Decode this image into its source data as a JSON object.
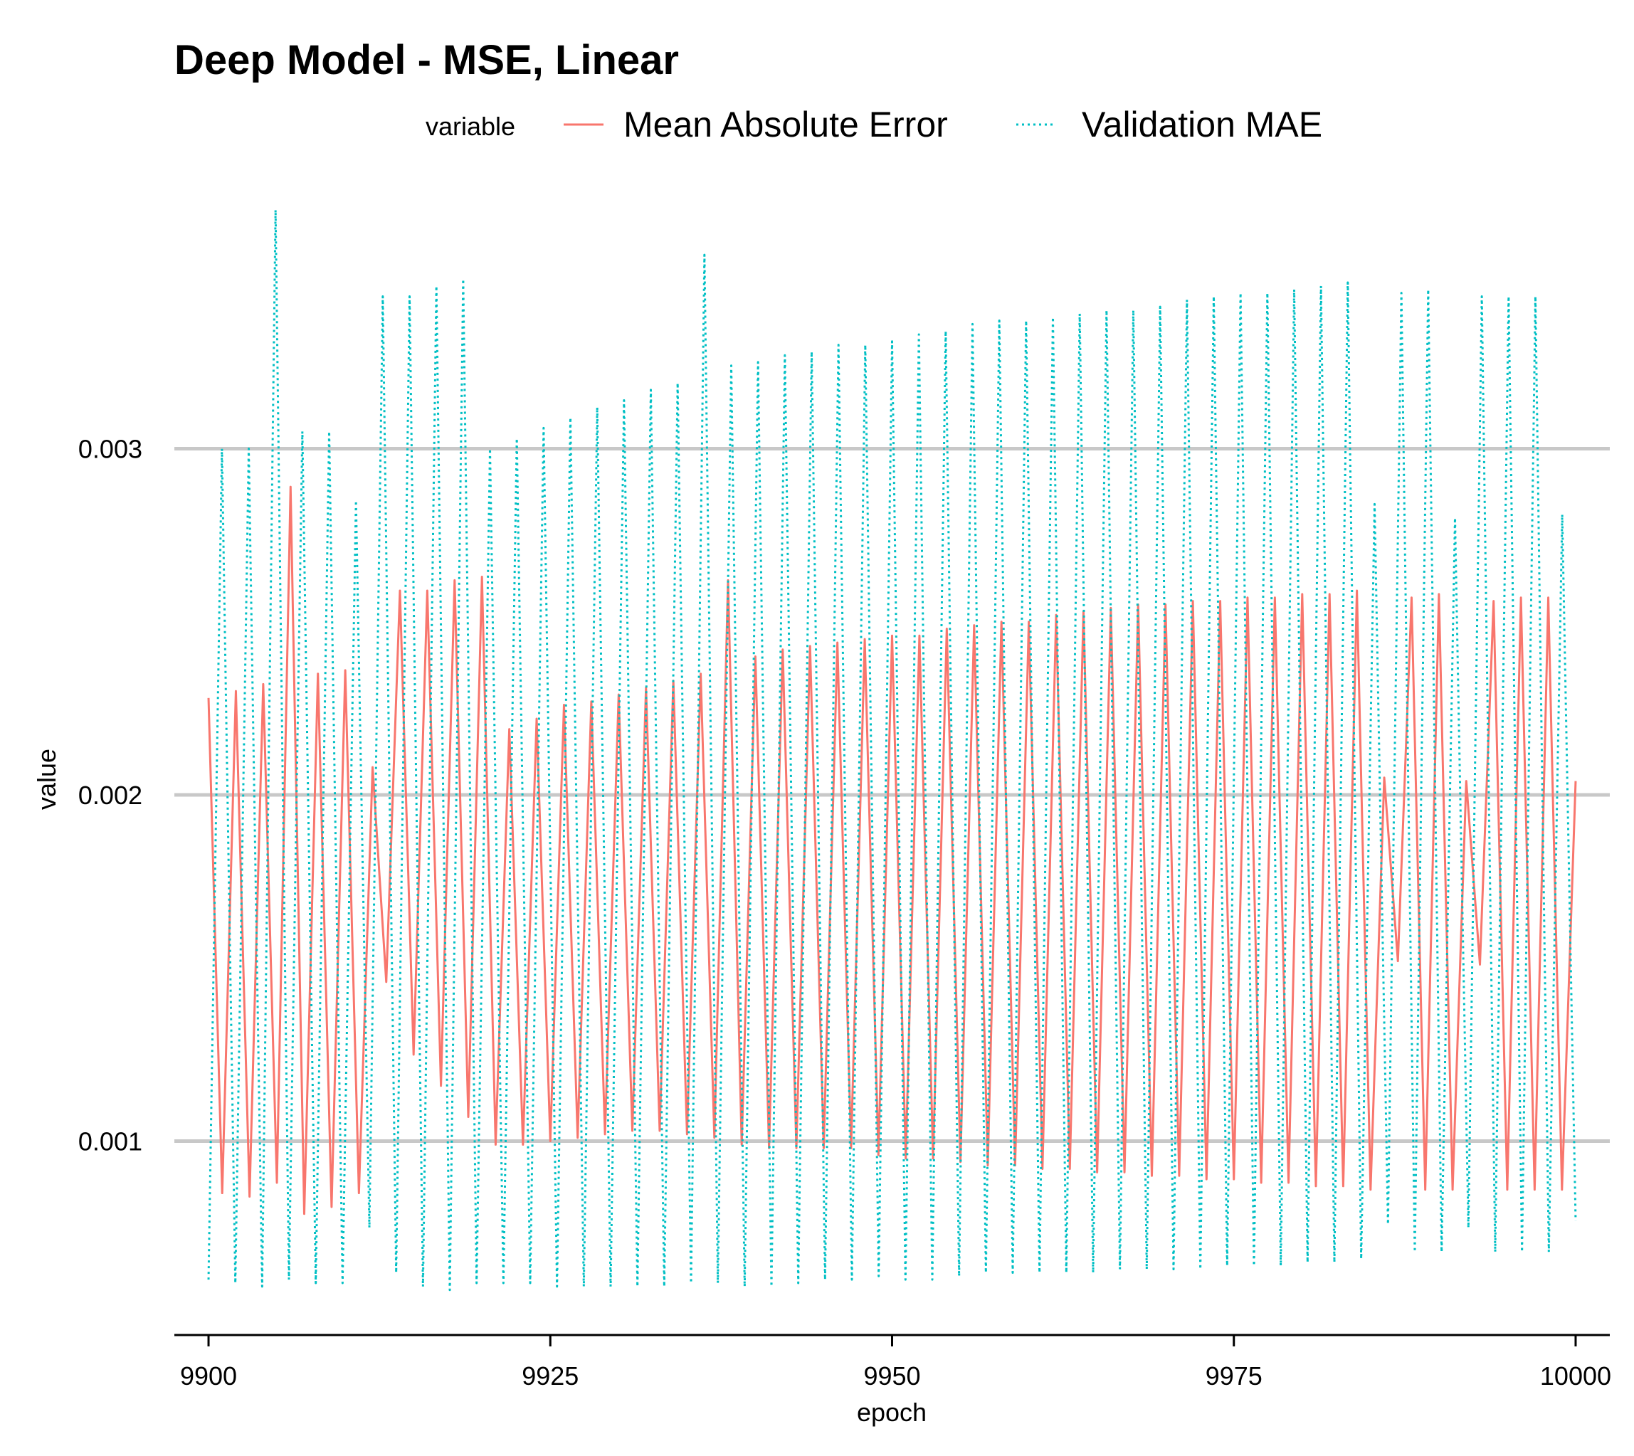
{
  "chart_data": {
    "type": "line",
    "title": "Deep Model - MSE, Linear",
    "xlabel": "epoch",
    "ylabel": "value",
    "xlim": [
      9897.5,
      10002.5
    ],
    "ylim": [
      0.00044,
      0.0037
    ],
    "x_ticks": [
      9900,
      9925,
      9950,
      9975,
      10000
    ],
    "x_tick_labels": [
      "9900",
      "9925",
      "9950",
      "9975",
      "10000"
    ],
    "y_ticks": [
      0.001,
      0.002,
      0.003
    ],
    "y_tick_labels": [
      "0.001",
      "0.002",
      "0.003"
    ],
    "grid": "horizontal major lines",
    "legend": {
      "title": "variable",
      "position": "top",
      "entries": [
        "Mean Absolute Error",
        "Validation MAE"
      ]
    },
    "x_start": 9900,
    "x_end": 10000,
    "series": [
      {
        "name": "Mean Absolute Error",
        "color": "#F8766D",
        "dash": "solid",
        "values": [
          0.00228,
          0.00085,
          0.0023,
          0.00084,
          0.00232,
          0.00088,
          0.00289,
          0.00079,
          0.00235,
          0.00081,
          0.00236,
          0.00085,
          0.00208,
          0.00146,
          0.00259,
          0.00125,
          0.00259,
          0.00116,
          0.00262,
          0.00107,
          0.00263,
          0.00099,
          0.00219,
          0.00099,
          0.00222,
          0.001,
          0.00226,
          0.00101,
          0.00227,
          0.00102,
          0.00229,
          0.00103,
          0.00231,
          0.00103,
          0.00233,
          0.00102,
          0.00235,
          0.00101,
          0.00262,
          0.00099,
          0.0024,
          0.00098,
          0.00242,
          0.00098,
          0.00243,
          0.00098,
          0.00244,
          0.00098,
          0.00245,
          0.00096,
          0.00246,
          0.00095,
          0.00246,
          0.00095,
          0.00248,
          0.00094,
          0.00249,
          0.00093,
          0.0025,
          0.00093,
          0.0025,
          0.00092,
          0.00252,
          0.00092,
          0.00253,
          0.00091,
          0.00254,
          0.00091,
          0.00255,
          0.0009,
          0.00255,
          0.0009,
          0.00256,
          0.00089,
          0.00256,
          0.00089,
          0.00257,
          0.00088,
          0.00257,
          0.00088,
          0.00258,
          0.00087,
          0.00258,
          0.00087,
          0.00259,
          0.00086,
          0.00205,
          0.00152,
          0.00257,
          0.00086,
          0.00258,
          0.00086,
          0.00204,
          0.00151,
          0.00256,
          0.00086,
          0.00257,
          0.00086,
          0.00257,
          0.00086,
          0.00204
        ]
      },
      {
        "name": "Validation MAE",
        "color": "#00BFC4",
        "dash": "dotted",
        "values": [
          0.0006,
          0.003,
          0.00059,
          0.003,
          0.00058,
          0.00369,
          0.0006,
          0.00305,
          0.00059,
          0.00305,
          0.00059,
          0.00285,
          0.00075,
          0.00344,
          0.00062,
          0.00344,
          0.00058,
          0.00347,
          0.00057,
          0.00349,
          0.00059,
          0.003,
          0.00059,
          0.00303,
          0.00059,
          0.00306,
          0.00058,
          0.00309,
          0.00058,
          0.00312,
          0.00058,
          0.00314,
          0.00058,
          0.00317,
          0.00058,
          0.00319,
          0.00059,
          0.00356,
          0.00059,
          0.00324,
          0.00058,
          0.00325,
          0.00058,
          0.00327,
          0.00059,
          0.00328,
          0.0006,
          0.0033,
          0.0006,
          0.0033,
          0.00061,
          0.00331,
          0.0006,
          0.00333,
          0.0006,
          0.00334,
          0.00061,
          0.00336,
          0.00062,
          0.00337,
          0.00062,
          0.00337,
          0.00062,
          0.00338,
          0.00062,
          0.00339,
          0.00062,
          0.0034,
          0.00063,
          0.0034,
          0.00063,
          0.00341,
          0.00063,
          0.00343,
          0.00063,
          0.00344,
          0.00064,
          0.00345,
          0.00064,
          0.00345,
          0.00064,
          0.00346,
          0.00065,
          0.00347,
          0.00065,
          0.00348,
          0.00066,
          0.00284,
          0.00076,
          0.00345,
          0.00068,
          0.00346,
          0.00068,
          0.0028,
          0.00075,
          0.00344,
          0.00068,
          0.00344,
          0.00068,
          0.00344,
          0.00068,
          0.00281,
          0.00077
        ]
      }
    ]
  }
}
